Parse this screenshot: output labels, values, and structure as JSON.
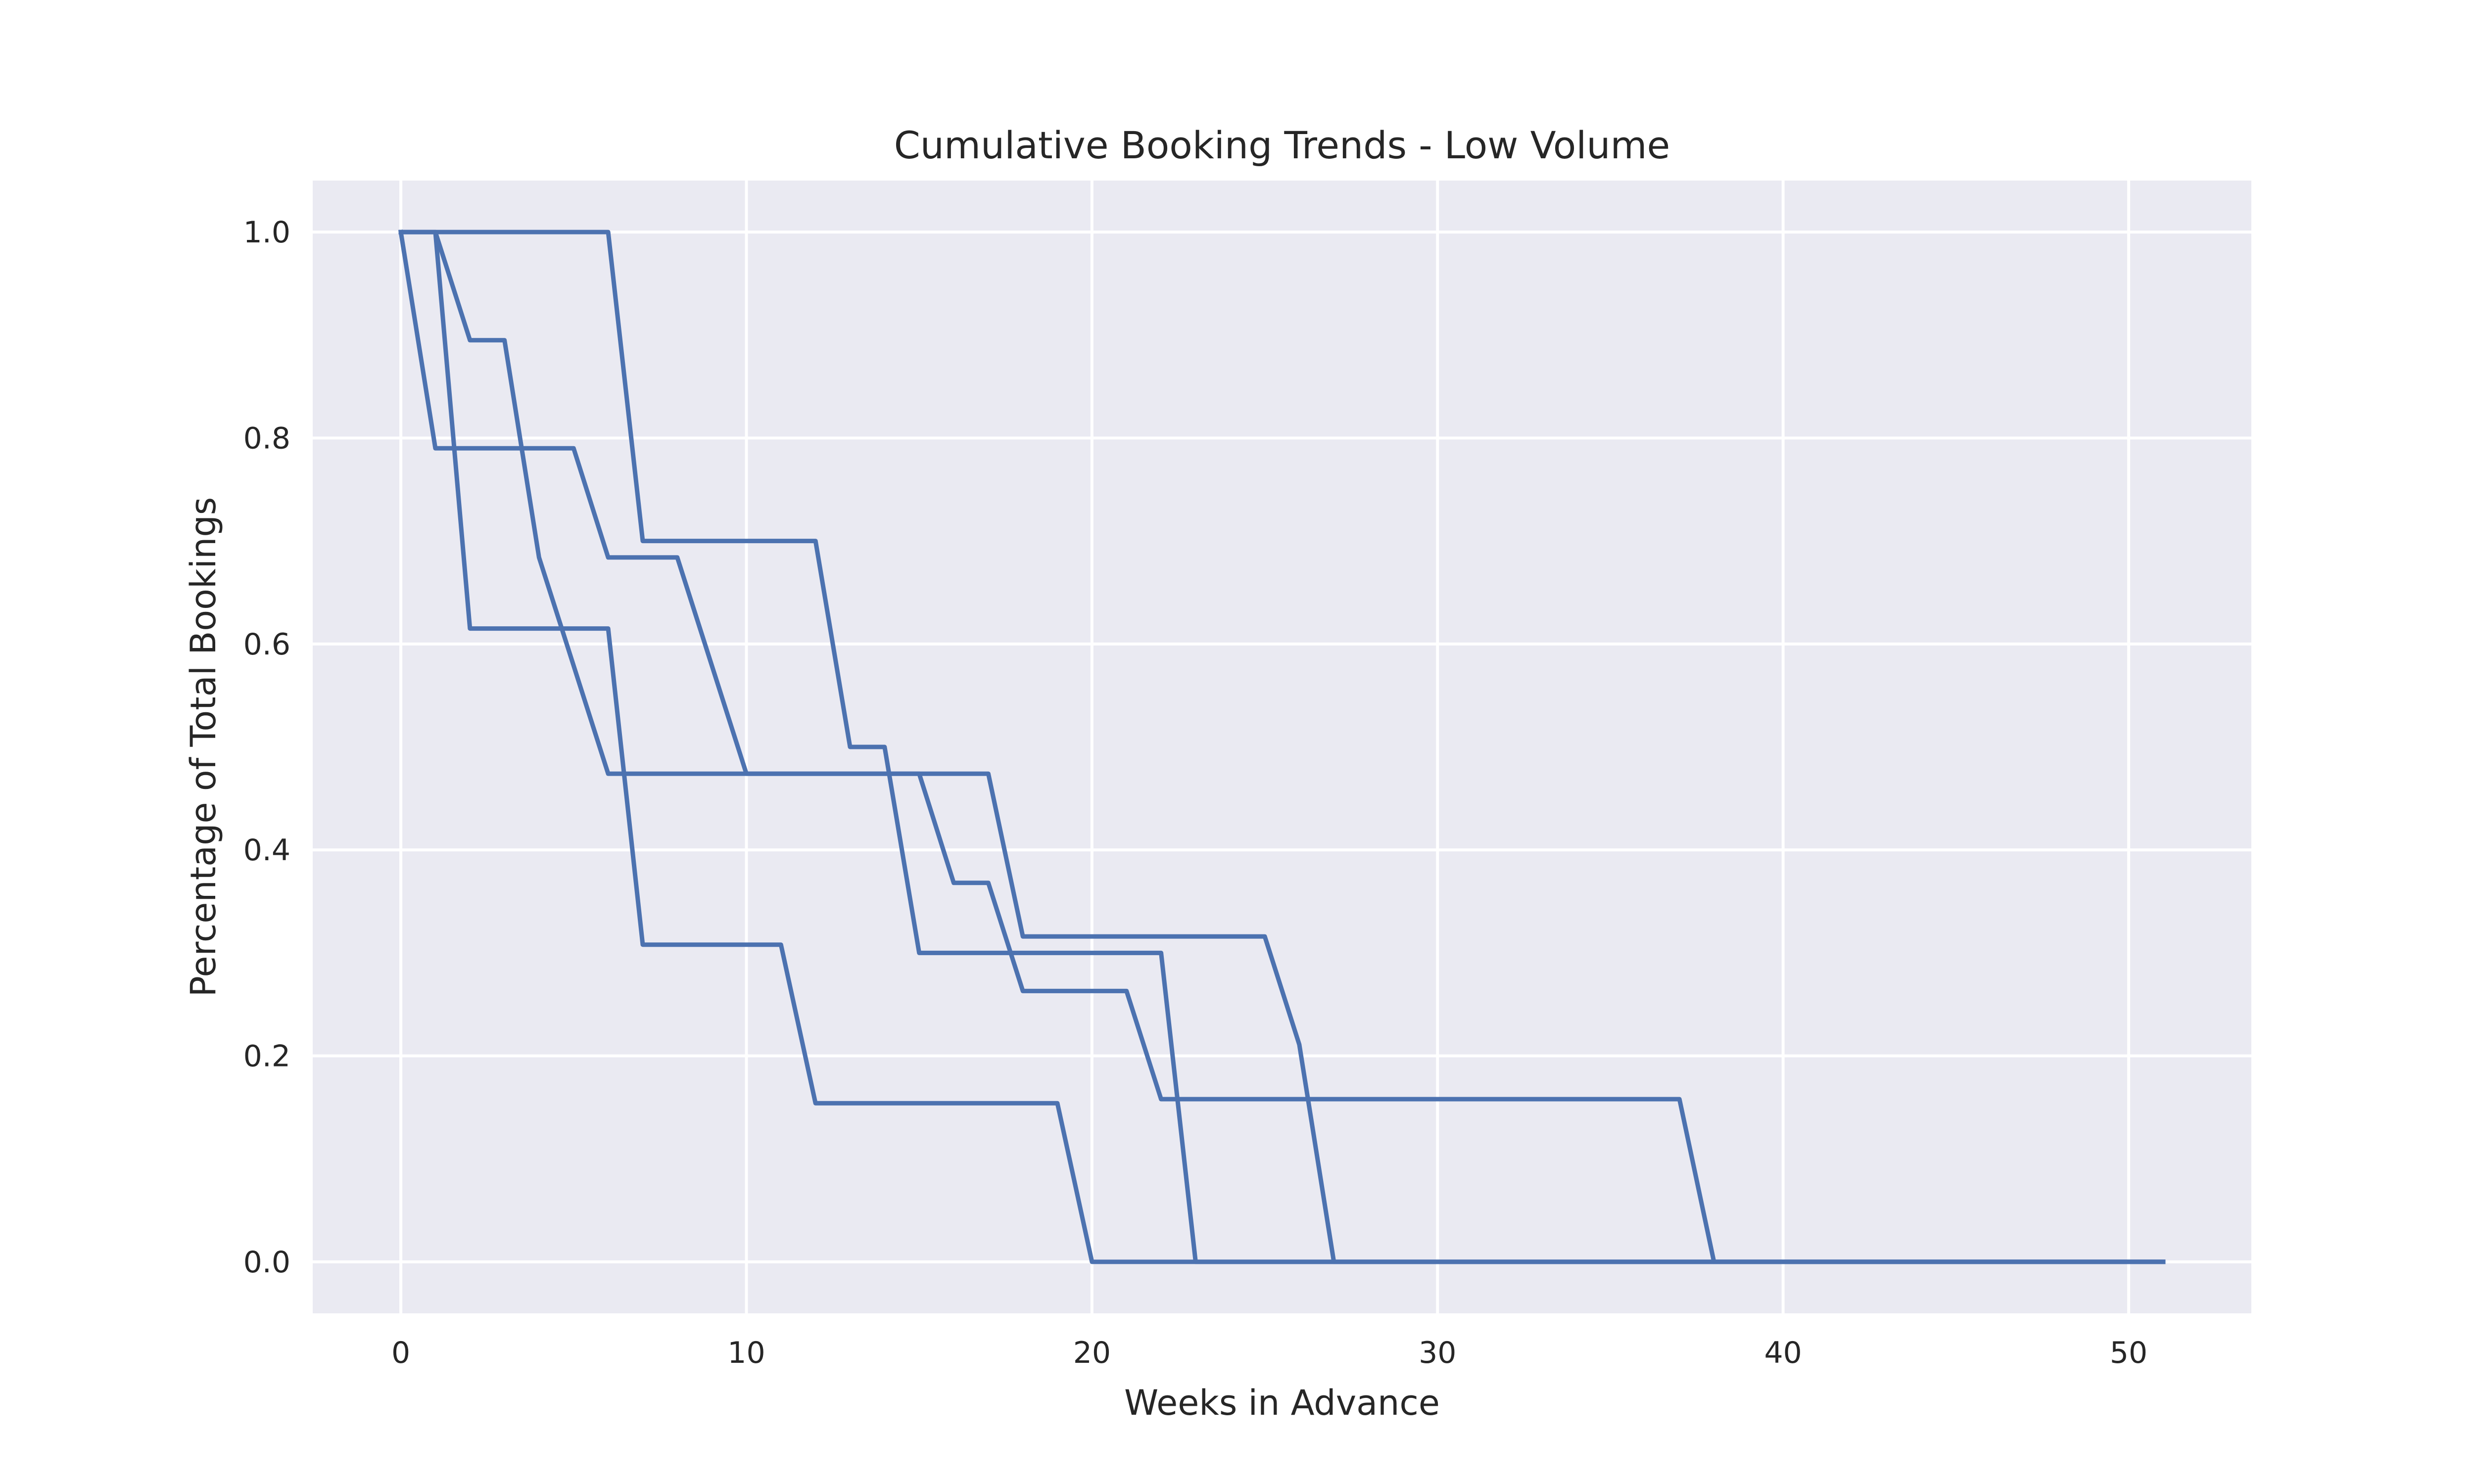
{
  "chart_data": {
    "type": "line",
    "title": "Cumulative Booking Trends - Low Volume",
    "xlabel": "Weeks in Advance",
    "ylabel": "Percentage of Total Bookings",
    "xlim": [
      -2.55,
      53.55
    ],
    "ylim": [
      -0.05,
      1.05
    ],
    "xticks": [
      0,
      10,
      20,
      30,
      40,
      50
    ],
    "xtick_labels": [
      "0",
      "10",
      "20",
      "30",
      "40",
      "50"
    ],
    "yticks": [
      0.0,
      0.2,
      0.4,
      0.6,
      0.8,
      1.0
    ],
    "ytick_labels": [
      "0.0",
      "0.2",
      "0.4",
      "0.6",
      "0.8",
      "1.0"
    ],
    "grid": true,
    "legend": false,
    "colors": {
      "line": "#4c72b0",
      "plot_background": "#eaeaf2",
      "grid": "#ffffff",
      "text": "#262626"
    },
    "series": [
      {
        "x": [
          0,
          1,
          2,
          5,
          6,
          8,
          10,
          17,
          18,
          25,
          26,
          27,
          51
        ],
        "y": [
          1.0,
          0.79,
          0.79,
          0.79,
          0.684,
          0.684,
          0.474,
          0.474,
          0.316,
          0.316,
          0.211,
          0.0,
          0.0
        ]
      },
      {
        "x": [
          0,
          6,
          7,
          12,
          13,
          14,
          15,
          22,
          23,
          51
        ],
        "y": [
          1.0,
          1.0,
          0.7,
          0.7,
          0.5,
          0.5,
          0.3,
          0.3,
          0.0,
          0.0
        ]
      },
      {
        "x": [
          0,
          1,
          2,
          6,
          7,
          11,
          12,
          19,
          20,
          51
        ],
        "y": [
          1.0,
          1.0,
          0.615,
          0.615,
          0.308,
          0.308,
          0.154,
          0.154,
          0.0,
          0.0
        ]
      },
      {
        "x": [
          0,
          1,
          2,
          3,
          4,
          6,
          15,
          16,
          17,
          18,
          21,
          22,
          37,
          38,
          51
        ],
        "y": [
          1.0,
          1.0,
          0.895,
          0.895,
          0.684,
          0.474,
          0.474,
          0.368,
          0.368,
          0.263,
          0.263,
          0.158,
          0.158,
          0.0,
          0.0
        ]
      }
    ]
  }
}
